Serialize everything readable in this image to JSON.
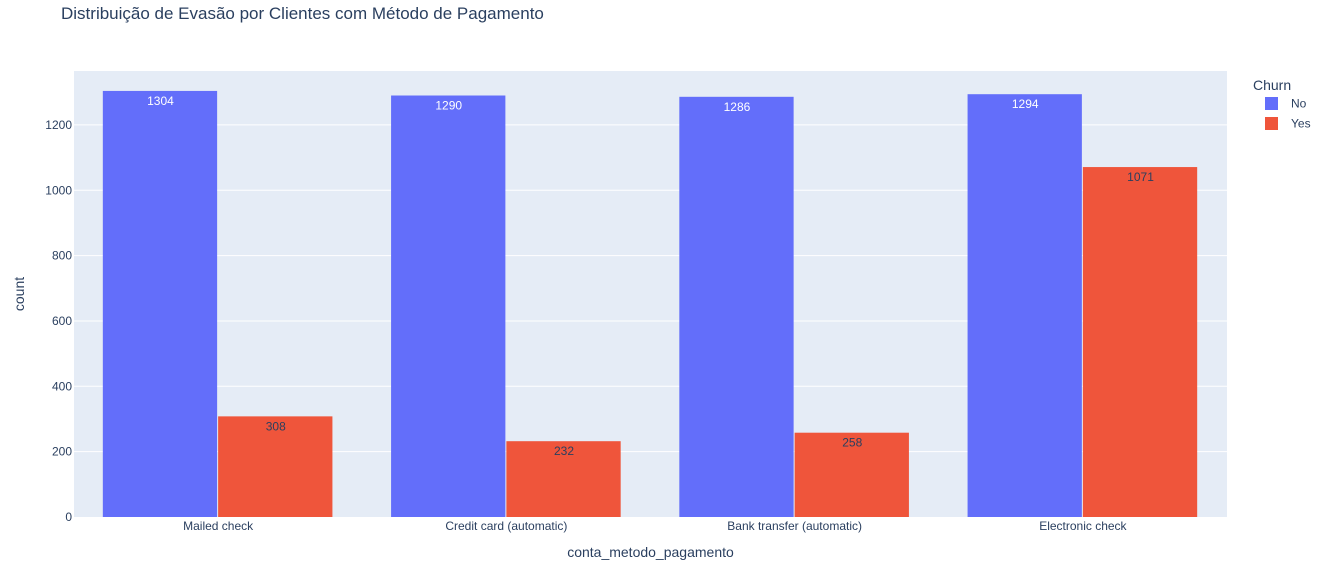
{
  "chart_data": {
    "type": "bar",
    "title": "Distribuição de Evasão por Clientes com Método de Pagamento",
    "xlabel": "conta_metodo_pagamento",
    "ylabel": "count",
    "categories": [
      "Mailed check",
      "Credit card (automatic)",
      "Bank transfer (automatic)",
      "Electronic check"
    ],
    "series": [
      {
        "name": "No",
        "values": [
          1304,
          1290,
          1286,
          1294
        ],
        "color": "#636efa"
      },
      {
        "name": "Yes",
        "values": [
          308,
          232,
          258,
          1071
        ],
        "color": "#ef553b"
      }
    ],
    "ylim": [
      0,
      1365
    ],
    "yticks": [
      0,
      200,
      400,
      600,
      800,
      1000,
      1200
    ],
    "legend": {
      "title": "Churn",
      "placement": "top-right"
    },
    "grid": true,
    "barmode": "group",
    "plot_background": "#e5ecf6"
  }
}
